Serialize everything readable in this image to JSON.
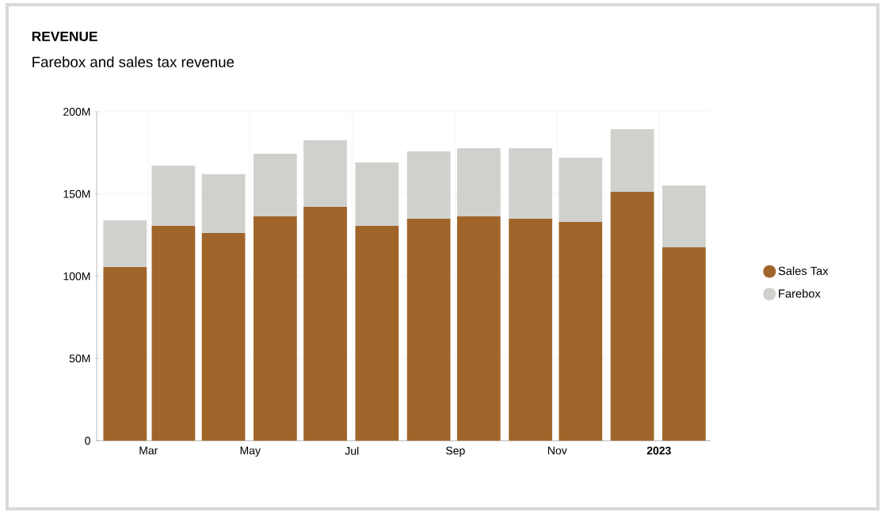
{
  "chart_data": {
    "type": "bar",
    "title": "REVENUE",
    "subtitle": "Farebox and sales tax revenue",
    "x": [
      "2022-02-15",
      "2022-03-16",
      "2022-04-15",
      "2022-05-16",
      "2022-06-15",
      "2022-07-16",
      "2022-08-16",
      "2022-09-15",
      "2022-10-16",
      "2022-11-15",
      "2022-12-16",
      "2023-01-16"
    ],
    "series": [
      {
        "name": "Sales Tax",
        "color": "#a0652a",
        "values": [
          105.5,
          130.6,
          126.3,
          136.4,
          142.2,
          130.6,
          135,
          136.4,
          135,
          133,
          151.3,
          117.6
        ]
      },
      {
        "name": "Farebox",
        "color": "#d0d0cc",
        "values": [
          28.5,
          36.6,
          35.7,
          38.1,
          40.5,
          38.6,
          40.9,
          41.4,
          42.8,
          39,
          38.1,
          37.6
        ]
      }
    ],
    "stacked": true,
    "xlim": [
      "2022-01-29",
      "2023-02-01"
    ],
    "xticks": [
      {
        "value": "2022-03-01",
        "label": "Mar"
      },
      {
        "value": "2022-05-01",
        "label": "May"
      },
      {
        "value": "2022-07-01",
        "label": "Jul"
      },
      {
        "value": "2022-09-01",
        "label": "Sep"
      },
      {
        "value": "2022-11-01",
        "label": "Nov"
      },
      {
        "value": "2023-01-01",
        "label": "**2023**"
      }
    ],
    "ylim": [
      0,
      200
    ],
    "yticks": [
      0,
      {
        "value": 50,
        "label": "50M"
      },
      {
        "value": 100,
        "label": "100M"
      },
      {
        "value": 150,
        "label": "150M"
      },
      {
        "value": 200,
        "label": "200M"
      }
    ],
    "grid": true,
    "legend": "right"
  }
}
